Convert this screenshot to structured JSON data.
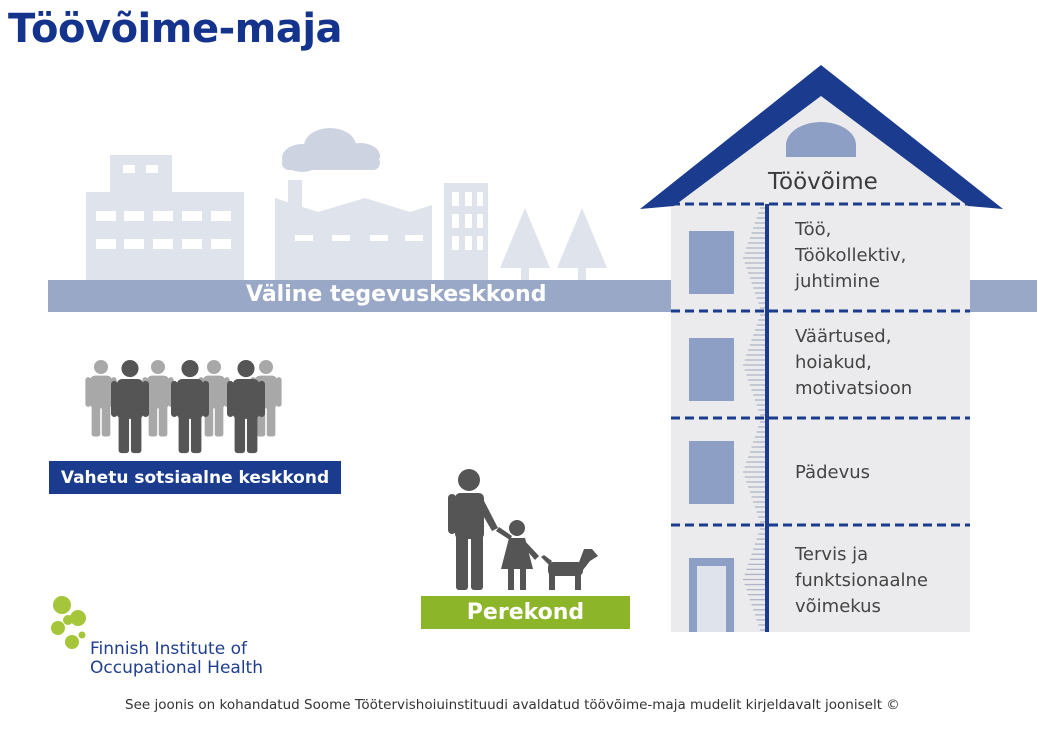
{
  "title": "Töövõime-maja",
  "environment": {
    "label": "Väline tegevuskeskkond"
  },
  "house": {
    "title": "Töövõime",
    "floors": [
      {
        "label": "Töö,\nTöökollektiv,\njuhtimine"
      },
      {
        "label": "Väärtused,\nhoiakud,\nmotivatsioon"
      },
      {
        "label": "Pädevus"
      },
      {
        "label": "Tervis ja\nfunktsionaalne\nvõimekus"
      }
    ]
  },
  "social": {
    "label": "Vahetu sotsiaalne keskkond"
  },
  "family": {
    "label": "Perekond"
  },
  "logo": {
    "name": "Finnish Institute of\nOccupational Health"
  },
  "footer": {
    "text": "See joonis on kohandatud Soome Töötervishoiuinstituudi avaldatud töövõime-maja mudelit kirjeldavalt jooniselt ©"
  },
  "colors": {
    "title": "#14338c",
    "roof": "#1a3b8e",
    "ground": "#9aa8c8",
    "skyline": "#dfe3ec",
    "window": "#8d9fc4",
    "social_box": "#1a3b8e",
    "family_box": "#8db52a",
    "people_dark": "#555555",
    "people_light": "#a8a8a8",
    "logo_green": "#a5c63b"
  }
}
